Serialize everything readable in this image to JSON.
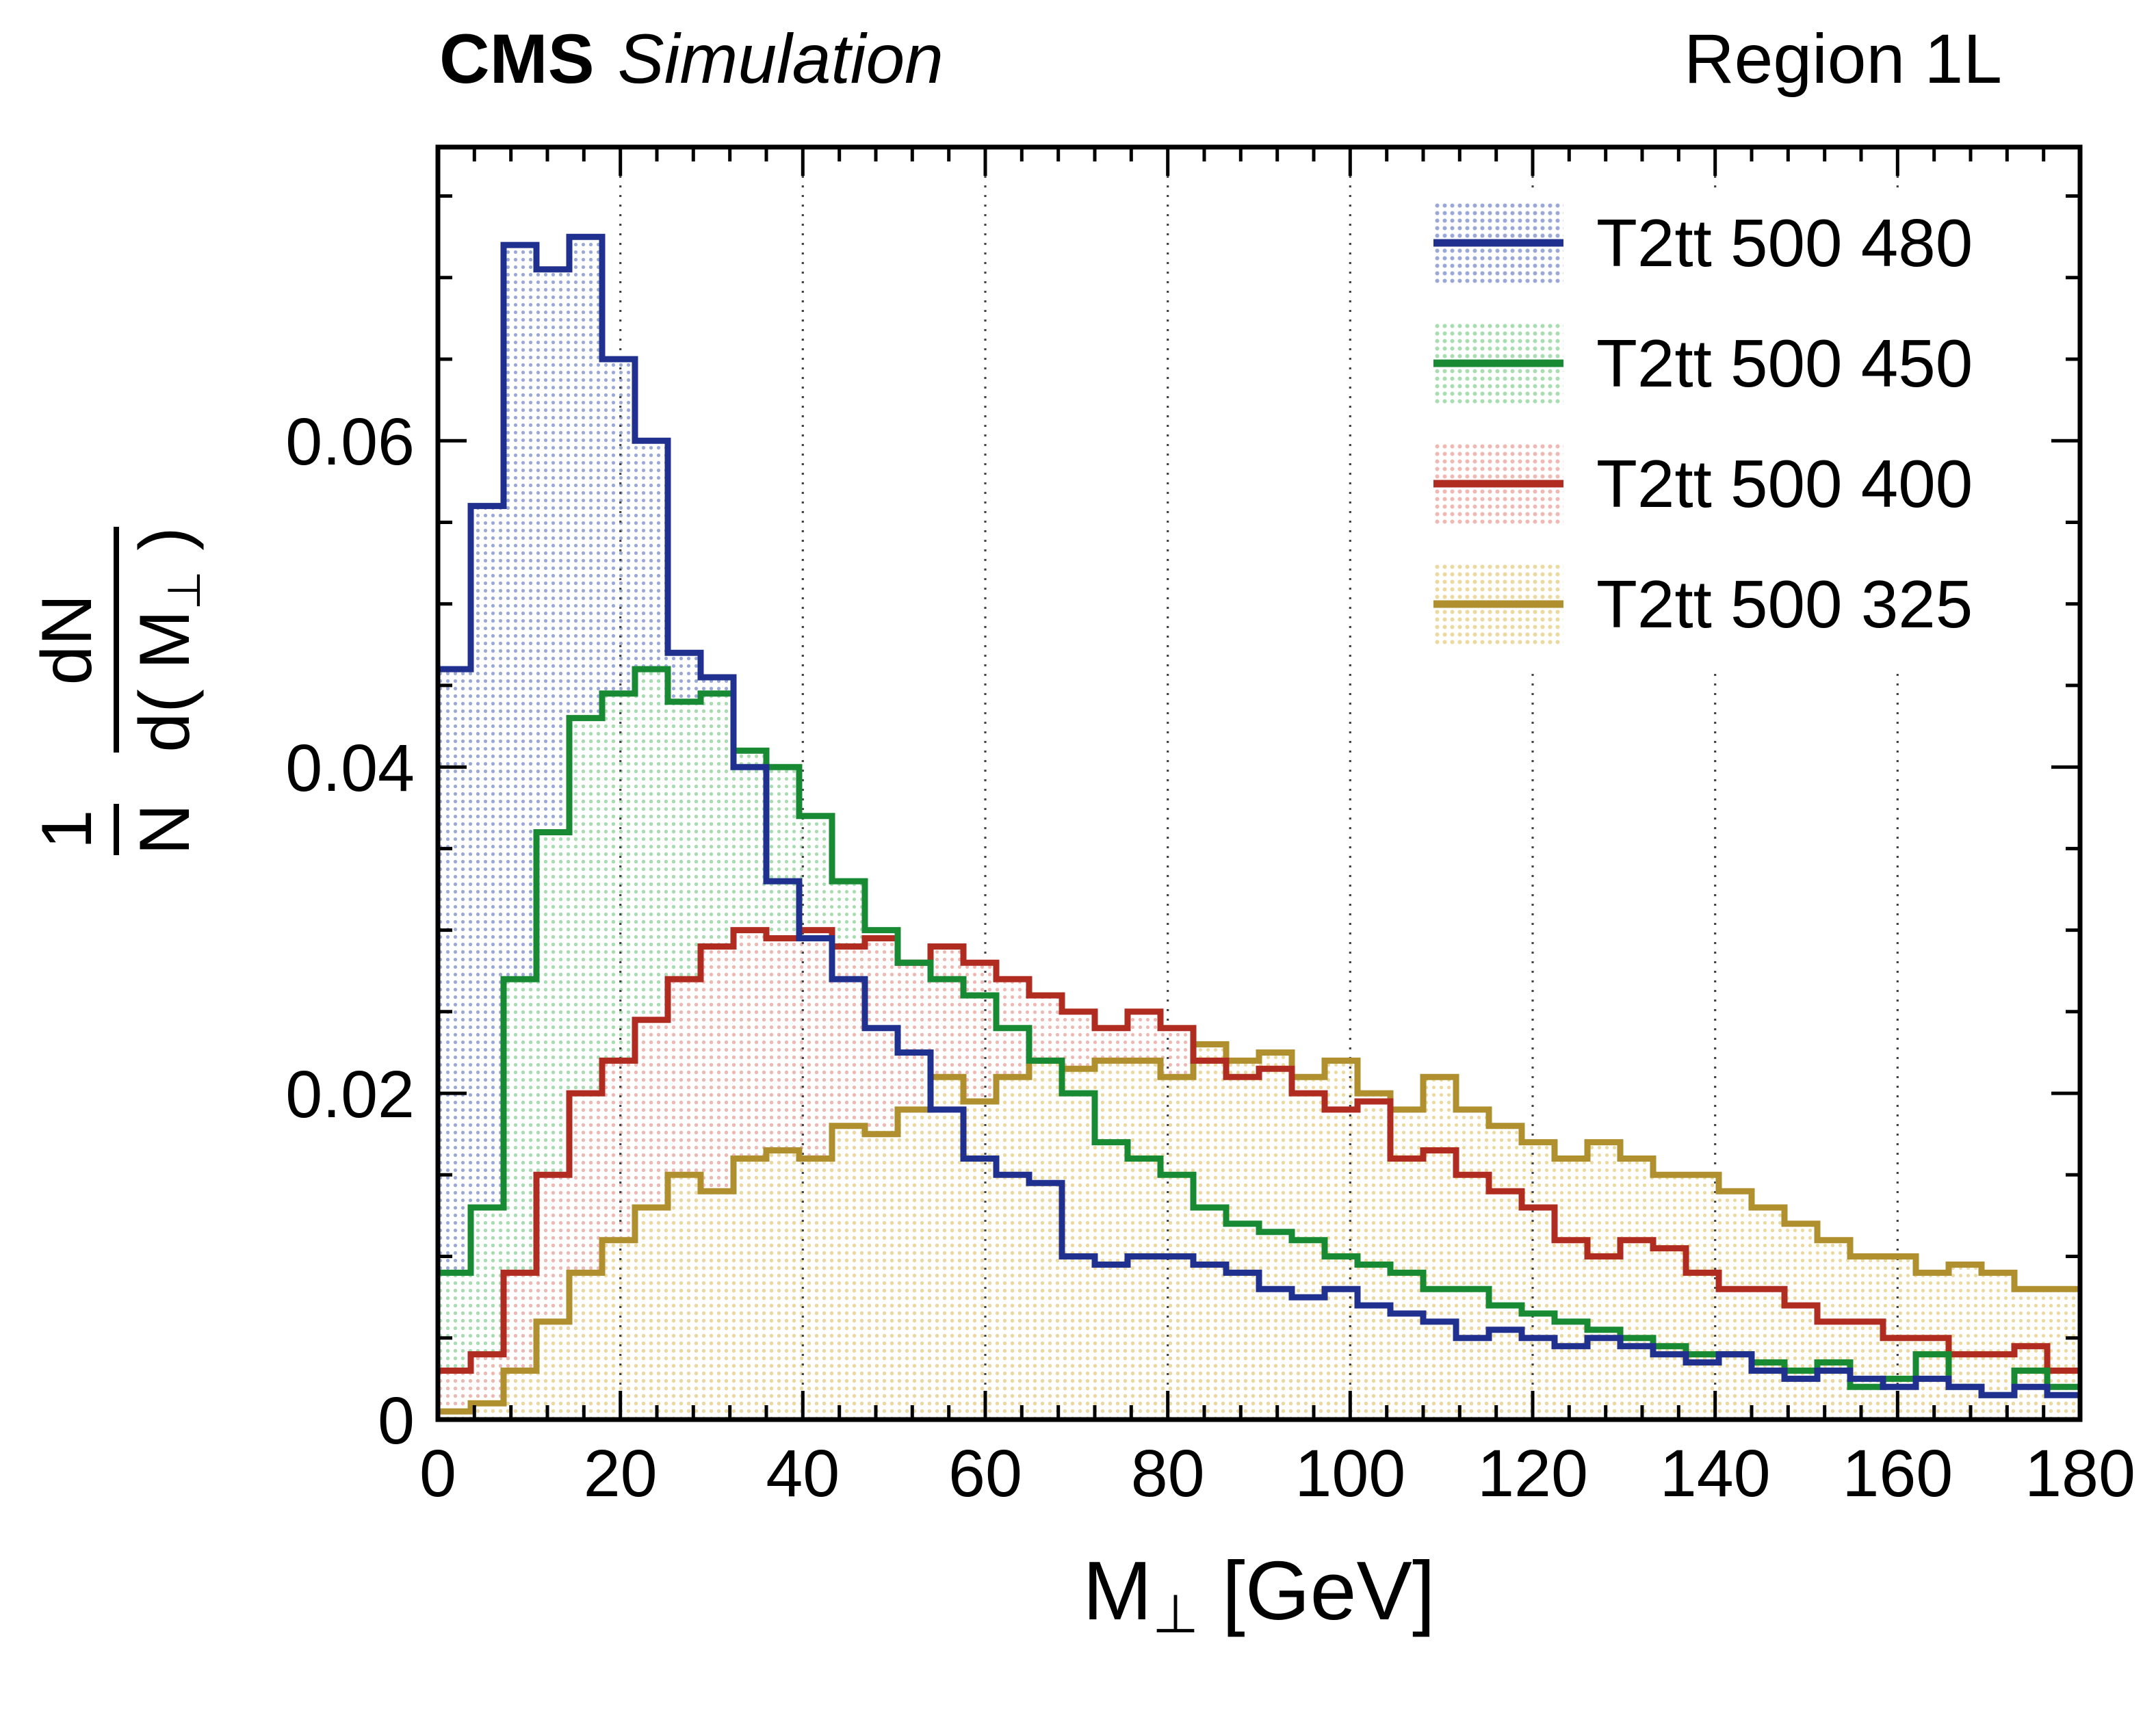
{
  "header": {
    "brand": "CMS",
    "mode": "Simulation",
    "region": "Region 1L"
  },
  "axes": {
    "x": {
      "min": 0,
      "max": 180,
      "major_ticks": [
        0,
        20,
        40,
        60,
        80,
        100,
        120,
        140,
        160,
        180
      ],
      "minor_step": 4,
      "gridlines": [
        20,
        40,
        60,
        80,
        100,
        120,
        140,
        160
      ],
      "title_pre": "M",
      "title_sub": "⊥",
      "title_post": " [GeV]"
    },
    "y": {
      "min": 0,
      "max": 0.078,
      "major_ticks": [
        0,
        0.02,
        0.04,
        0.06
      ],
      "tick_labels": [
        "0",
        "0.02",
        "0.04",
        "0.06"
      ],
      "minor_step": 0.005,
      "title": {
        "num1": "1",
        "den1": "N",
        "num2": "dN",
        "den2_pre": "d( M",
        "den2_sub": "⊥",
        "den2_post": " )"
      }
    }
  },
  "chart_data": {
    "type": "step-histogram",
    "title": "CMS Simulation — Region 1L",
    "xlabel": "M⊥ [GeV]",
    "ylabel": "1/N dN/d(M⊥)",
    "x_range": [
      0,
      180
    ],
    "y_range": [
      0,
      0.078
    ],
    "x_start": 0,
    "bin_width": 3.6,
    "grid": "vertical-dotted",
    "legend_position": "top-right",
    "series": [
      {
        "name": "T2tt 500 480",
        "color": "#20308e",
        "fill": "#9aa8d8",
        "values": [
          0.046,
          0.056,
          0.072,
          0.0705,
          0.0725,
          0.065,
          0.06,
          0.047,
          0.0455,
          0.04,
          0.033,
          0.0295,
          0.027,
          0.024,
          0.0225,
          0.019,
          0.016,
          0.015,
          0.0145,
          0.01,
          0.0095,
          0.01,
          0.01,
          0.0095,
          0.009,
          0.008,
          0.0075,
          0.008,
          0.007,
          0.0065,
          0.006,
          0.005,
          0.0055,
          0.005,
          0.0045,
          0.005,
          0.0045,
          0.004,
          0.0035,
          0.004,
          0.003,
          0.0025,
          0.003,
          0.0025,
          0.002,
          0.0025,
          0.002,
          0.0015,
          0.002,
          0.0015
        ]
      },
      {
        "name": "T2tt 500 450",
        "color": "#188a34",
        "fill": "#a8ddb0",
        "values": [
          0.009,
          0.013,
          0.027,
          0.036,
          0.043,
          0.0445,
          0.046,
          0.044,
          0.0445,
          0.041,
          0.04,
          0.037,
          0.033,
          0.03,
          0.028,
          0.027,
          0.026,
          0.024,
          0.022,
          0.02,
          0.017,
          0.016,
          0.015,
          0.013,
          0.012,
          0.0115,
          0.011,
          0.01,
          0.0095,
          0.009,
          0.008,
          0.008,
          0.007,
          0.0065,
          0.006,
          0.0055,
          0.005,
          0.0045,
          0.004,
          0.004,
          0.0035,
          0.003,
          0.0035,
          0.002,
          0.0025,
          0.004,
          0.002,
          0.0015,
          0.003,
          0.002
        ]
      },
      {
        "name": "T2tt 500 400",
        "color": "#b02c20",
        "fill": "#f0b8b2",
        "values": [
          0.003,
          0.004,
          0.009,
          0.015,
          0.02,
          0.022,
          0.0245,
          0.027,
          0.029,
          0.03,
          0.0295,
          0.03,
          0.029,
          0.0295,
          0.028,
          0.029,
          0.028,
          0.027,
          0.026,
          0.025,
          0.024,
          0.025,
          0.024,
          0.022,
          0.021,
          0.0215,
          0.02,
          0.019,
          0.0195,
          0.016,
          0.0165,
          0.015,
          0.014,
          0.013,
          0.011,
          0.01,
          0.011,
          0.0105,
          0.009,
          0.008,
          0.008,
          0.007,
          0.006,
          0.006,
          0.005,
          0.005,
          0.004,
          0.004,
          0.0045,
          0.003
        ]
      },
      {
        "name": "T2tt 500 325",
        "color": "#b08f2e",
        "fill": "#ecd9a0",
        "values": [
          0.0005,
          0.001,
          0.003,
          0.006,
          0.009,
          0.011,
          0.013,
          0.015,
          0.014,
          0.016,
          0.0165,
          0.016,
          0.018,
          0.0175,
          0.019,
          0.021,
          0.0195,
          0.021,
          0.022,
          0.0215,
          0.022,
          0.022,
          0.021,
          0.023,
          0.022,
          0.0225,
          0.021,
          0.022,
          0.02,
          0.019,
          0.021,
          0.019,
          0.018,
          0.017,
          0.016,
          0.017,
          0.016,
          0.015,
          0.015,
          0.014,
          0.013,
          0.012,
          0.011,
          0.01,
          0.01,
          0.009,
          0.0095,
          0.009,
          0.008,
          0.008
        ]
      }
    ]
  }
}
